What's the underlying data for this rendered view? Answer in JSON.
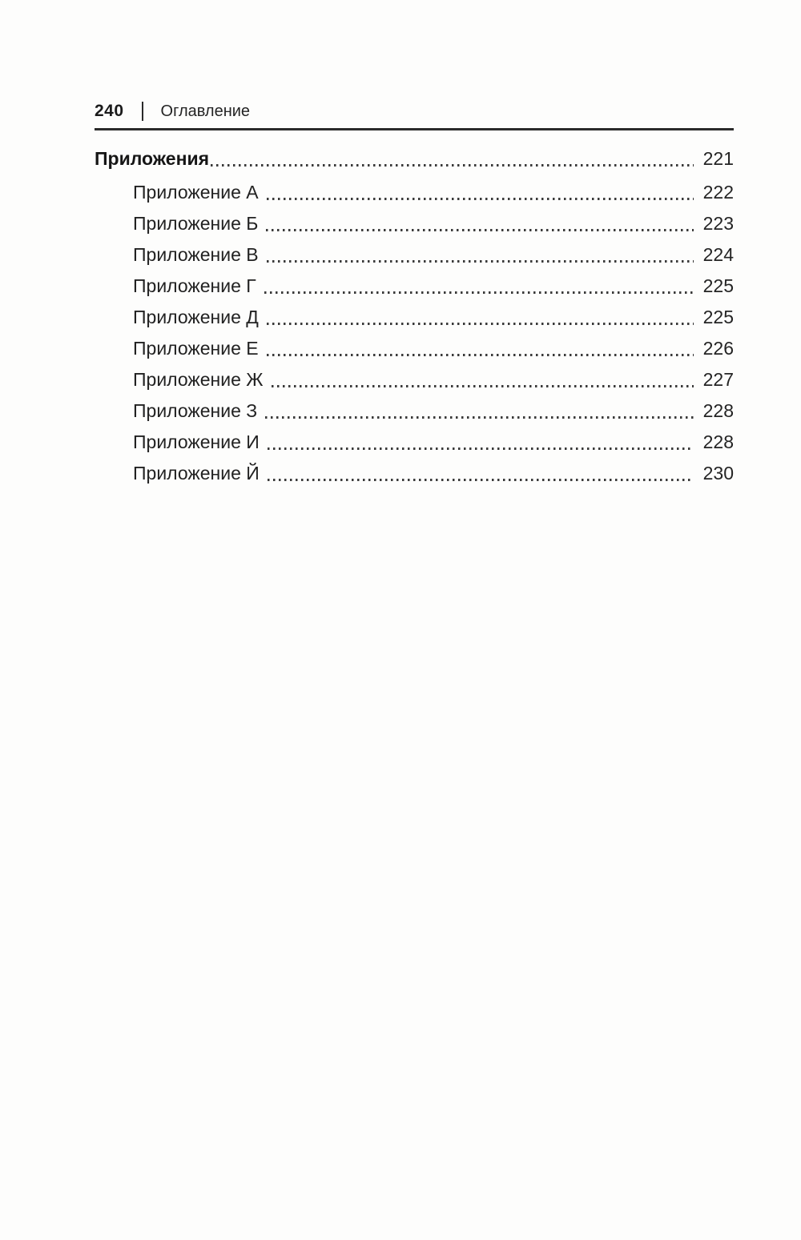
{
  "header": {
    "page_number": "240",
    "title": "Оглавление"
  },
  "toc": {
    "section": {
      "label": "Приложения",
      "page": "221"
    },
    "entries": [
      {
        "label": "Приложение А",
        "page": "222"
      },
      {
        "label": "Приложение Б",
        "page": "223"
      },
      {
        "label": "Приложение В",
        "page": "224"
      },
      {
        "label": "Приложение Г",
        "page": "225"
      },
      {
        "label": "Приложение Д",
        "page": "225"
      },
      {
        "label": "Приложение Е",
        "page": "226"
      },
      {
        "label": "Приложение Ж",
        "page": "227"
      },
      {
        "label": "Приложение З",
        "page": "228"
      },
      {
        "label": "Приложение И",
        "page": "228"
      },
      {
        "label": "Приложение Й",
        "page": "230"
      }
    ]
  },
  "colors": {
    "text": "#1f1f1f",
    "rule": "#2b2b2b",
    "paper": "#fdfdfc"
  }
}
